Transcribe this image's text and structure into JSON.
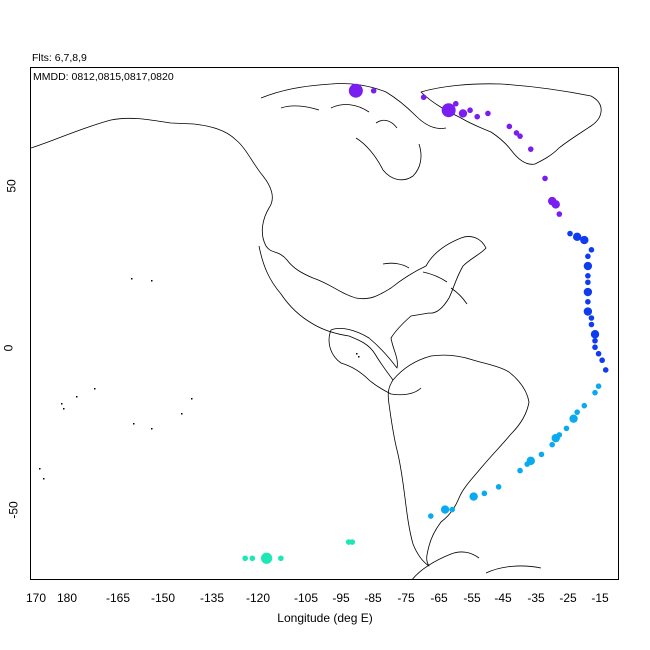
{
  "header": {
    "flights_label": "Flts: 6,7,8,9",
    "mmdd_label": "MMDD: 0812,0815,0817,0820"
  },
  "axes": {
    "xlabel": "Longitude (deg E)",
    "ylabel": "",
    "x_ticks": [
      "170",
      "180",
      "-165",
      "-150",
      "-135",
      "-120",
      "-105",
      "-95",
      "-85",
      "-75",
      "-65",
      "-55",
      "-45",
      "-35",
      "-25",
      "-15"
    ],
    "y_ticks": [
      "50",
      "0",
      "-50"
    ]
  },
  "chart_data": {
    "type": "scatter",
    "title": "",
    "xlabel": "Longitude (deg E)",
    "ylabel": "",
    "xlim": [
      -177,
      -12
    ],
    "ylim": [
      -72,
      86
    ],
    "grid": false,
    "point_color_meaning": "latitude band (purple north to teal south)",
    "series": [
      {
        "color": "#7a1df0",
        "points": [
          {
            "lon": -86,
            "lat": 79,
            "size": 5
          },
          {
            "lon": -81,
            "lat": 79,
            "size": 2
          },
          {
            "lon": -67,
            "lat": 77,
            "size": 2
          },
          {
            "lon": -60,
            "lat": 73,
            "size": 5
          },
          {
            "lon": -58,
            "lat": 75,
            "size": 2
          },
          {
            "lon": -56,
            "lat": 72,
            "size": 3
          },
          {
            "lon": -54,
            "lat": 73,
            "size": 2
          },
          {
            "lon": -52,
            "lat": 71,
            "size": 2
          },
          {
            "lon": -49,
            "lat": 72,
            "size": 2
          },
          {
            "lon": -43,
            "lat": 68,
            "size": 2
          },
          {
            "lon": -41,
            "lat": 66,
            "size": 2
          },
          {
            "lon": -40,
            "lat": 65,
            "size": 2
          },
          {
            "lon": -37,
            "lat": 61,
            "size": 2
          },
          {
            "lon": -33,
            "lat": 52,
            "size": 2
          },
          {
            "lon": -31,
            "lat": 45,
            "size": 3
          },
          {
            "lon": -30,
            "lat": 44,
            "size": 3
          },
          {
            "lon": -29,
            "lat": 41,
            "size": 2
          }
        ]
      },
      {
        "color": "#0f3cf0",
        "points": [
          {
            "lon": -26,
            "lat": 35,
            "size": 2
          },
          {
            "lon": -24,
            "lat": 34,
            "size": 3
          },
          {
            "lon": -22,
            "lat": 33,
            "size": 3
          },
          {
            "lon": -20,
            "lat": 30,
            "size": 2
          },
          {
            "lon": -21,
            "lat": 28,
            "size": 2
          },
          {
            "lon": -21,
            "lat": 25,
            "size": 3
          },
          {
            "lon": -21,
            "lat": 22,
            "size": 2
          },
          {
            "lon": -21,
            "lat": 20,
            "size": 2
          },
          {
            "lon": -21,
            "lat": 17,
            "size": 3
          },
          {
            "lon": -21,
            "lat": 14,
            "size": 2
          },
          {
            "lon": -21,
            "lat": 11,
            "size": 3
          },
          {
            "lon": -20,
            "lat": 9,
            "size": 2
          },
          {
            "lon": -20,
            "lat": 7,
            "size": 2
          },
          {
            "lon": -19,
            "lat": 4,
            "size": 3
          },
          {
            "lon": -19,
            "lat": 2,
            "size": 2
          },
          {
            "lon": -19,
            "lat": 0,
            "size": 2
          },
          {
            "lon": -18,
            "lat": -2,
            "size": 2
          },
          {
            "lon": -17,
            "lat": -4,
            "size": 2
          },
          {
            "lon": -16,
            "lat": -7,
            "size": 2
          }
        ]
      },
      {
        "color": "#0aaaf0",
        "points": [
          {
            "lon": -18,
            "lat": -12,
            "size": 2
          },
          {
            "lon": -19,
            "lat": -14,
            "size": 2
          },
          {
            "lon": -22,
            "lat": -18,
            "size": 2
          },
          {
            "lon": -24,
            "lat": -20,
            "size": 2
          },
          {
            "lon": -25,
            "lat": -22,
            "size": 3
          },
          {
            "lon": -27,
            "lat": -25,
            "size": 2
          },
          {
            "lon": -29,
            "lat": -27,
            "size": 2
          },
          {
            "lon": -30,
            "lat": -28,
            "size": 3
          },
          {
            "lon": -31,
            "lat": -30,
            "size": 2
          },
          {
            "lon": -34,
            "lat": -33,
            "size": 2
          },
          {
            "lon": -37,
            "lat": -35,
            "size": 3
          },
          {
            "lon": -38,
            "lat": -36,
            "size": 2
          },
          {
            "lon": -40,
            "lat": -38,
            "size": 2
          },
          {
            "lon": -46,
            "lat": -43,
            "size": 2
          },
          {
            "lon": -50,
            "lat": -45,
            "size": 2
          },
          {
            "lon": -53,
            "lat": -46,
            "size": 3
          },
          {
            "lon": -59,
            "lat": -50,
            "size": 2
          },
          {
            "lon": -61,
            "lat": -50,
            "size": 3
          },
          {
            "lon": -65,
            "lat": -52,
            "size": 2
          }
        ]
      },
      {
        "color": "#1ee6b4",
        "points": [
          {
            "lon": -87,
            "lat": -60,
            "size": 2
          },
          {
            "lon": -88,
            "lat": -60,
            "size": 2
          },
          {
            "lon": -107,
            "lat": -65,
            "size": 2
          },
          {
            "lon": -111,
            "lat": -65,
            "size": 4
          },
          {
            "lon": -115,
            "lat": -65,
            "size": 2
          },
          {
            "lon": -117,
            "lat": -65,
            "size": 2
          }
        ]
      }
    ]
  }
}
